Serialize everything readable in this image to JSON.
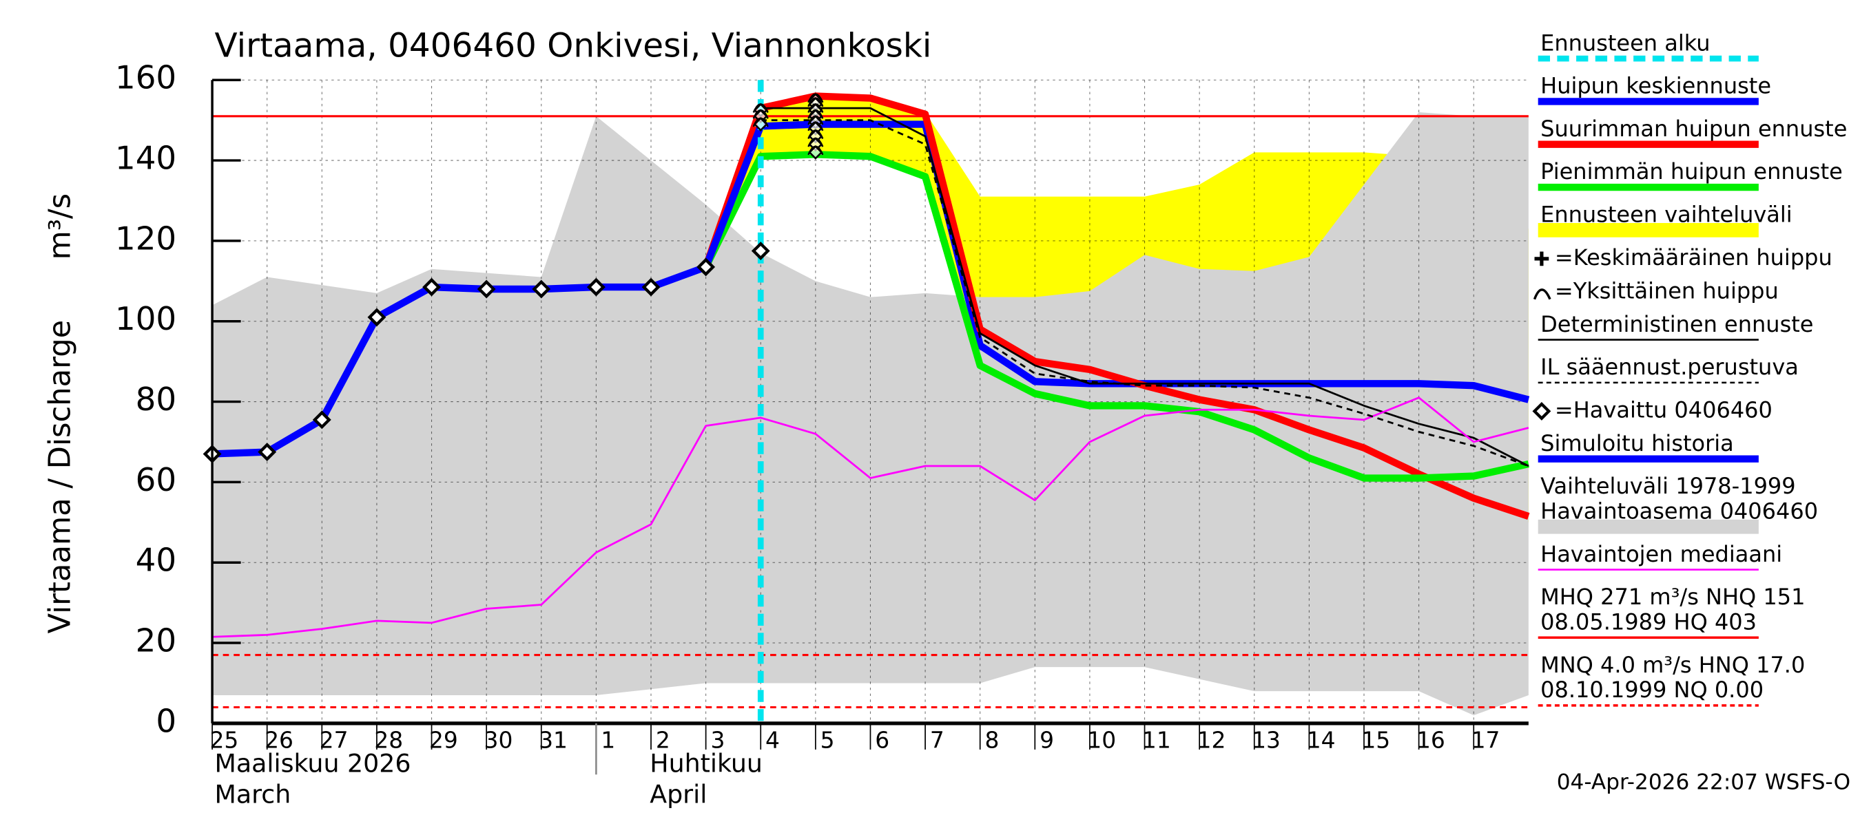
{
  "chart_data": {
    "type": "line",
    "title": "Virtaama, 0406460 Onkivesi, Viannonkoski",
    "ylabel": [
      "Virtaama / Discharge",
      "m³/s"
    ],
    "x": [
      0,
      1,
      2,
      3,
      4,
      5,
      6,
      7,
      8,
      9,
      10,
      11,
      12,
      13,
      14,
      15,
      16,
      17,
      18,
      19,
      20,
      21,
      22,
      23,
      24
    ],
    "xlim": [
      0,
      24
    ],
    "xticks": [
      {
        "value": 0,
        "label": "25"
      },
      {
        "value": 1,
        "label": "26"
      },
      {
        "value": 2,
        "label": "27"
      },
      {
        "value": 3,
        "label": "28"
      },
      {
        "value": 4,
        "label": "29"
      },
      {
        "value": 5,
        "label": "30"
      },
      {
        "value": 6,
        "label": "31"
      },
      {
        "value": 7,
        "label": "1"
      },
      {
        "value": 8,
        "label": "2"
      },
      {
        "value": 9,
        "label": "3"
      },
      {
        "value": 10,
        "label": "4"
      },
      {
        "value": 11,
        "label": "5"
      },
      {
        "value": 12,
        "label": "6"
      },
      {
        "value": 13,
        "label": "7"
      },
      {
        "value": 14,
        "label": "8"
      },
      {
        "value": 15,
        "label": "9"
      },
      {
        "value": 16,
        "label": "10"
      },
      {
        "value": 17,
        "label": "11"
      },
      {
        "value": 18,
        "label": "12"
      },
      {
        "value": 19,
        "label": "13"
      },
      {
        "value": 20,
        "label": "14"
      },
      {
        "value": 21,
        "label": "15"
      },
      {
        "value": 22,
        "label": "16"
      },
      {
        "value": 23,
        "label": "17"
      }
    ],
    "ylim": [
      0,
      160
    ],
    "yticks": [
      0,
      20,
      40,
      60,
      80,
      100,
      120,
      140,
      160
    ],
    "grid": true,
    "months": [
      {
        "x": 0,
        "lines": [
          "Maaliskuu 2026",
          "March"
        ]
      },
      {
        "x": 8,
        "lines": [
          "Huhtikuu",
          "April"
        ]
      }
    ],
    "month_start": 7,
    "series": [
      {
        "name": "Ennusteen alku",
        "color": "#00e5ee",
        "style": "vline",
        "x": 10
      },
      {
        "name": "Huipun keskiennuste",
        "color": "#0000ff",
        "style": "thick",
        "values": [
          null,
          null,
          null,
          null,
          null,
          null,
          null,
          null,
          null,
          113.5,
          148.5,
          149,
          149,
          149,
          94,
          85,
          84.5,
          84.5,
          84.5,
          84.5,
          84.5,
          84.5,
          84.5,
          84,
          80.5
        ]
      },
      {
        "name": "Suurimman huipun ennuste",
        "color": "#ff0000",
        "style": "thick",
        "values": [
          null,
          null,
          null,
          null,
          null,
          null,
          null,
          null,
          null,
          113.5,
          153,
          156,
          155.5,
          151.5,
          98,
          90,
          88,
          84,
          80.5,
          78,
          73,
          68.5,
          62,
          56,
          51.5
        ]
      },
      {
        "name": "Pienimmän huipun ennuste",
        "color": "#00ee00",
        "style": "thick",
        "values": [
          null,
          null,
          null,
          null,
          null,
          null,
          null,
          null,
          null,
          113.5,
          141,
          141.5,
          141,
          136,
          89,
          82,
          79,
          79,
          77.5,
          73,
          66,
          61,
          61,
          61.5,
          64.5
        ]
      },
      {
        "name": "Ennusteen vaihteluväli",
        "color": "#ffff00",
        "style": "band",
        "low": [
          null,
          null,
          null,
          null,
          null,
          null,
          null,
          null,
          null,
          113.5,
          141,
          141,
          141,
          136,
          88,
          80,
          79,
          75,
          74,
          70,
          66,
          61,
          55,
          52,
          50
        ],
        "high": [
          null,
          null,
          null,
          null,
          null,
          null,
          null,
          null,
          null,
          113.5,
          154,
          156,
          156,
          152,
          131,
          131,
          131,
          131,
          134,
          142,
          142,
          142,
          141,
          128,
          123
        ]
      },
      {
        "name": "=Keskimääräinen huippu",
        "color": "#000000",
        "style": "plus"
      },
      {
        "name": "=Yksittäinen huippu",
        "color": "#000000",
        "style": "peak",
        "px": [
          10,
          10,
          10,
          11,
          11,
          11,
          11,
          11,
          11,
          11,
          11,
          11
        ],
        "py": [
          152.5,
          151,
          149,
          155,
          154,
          152.5,
          151,
          149.5,
          148,
          146,
          144,
          142
        ]
      },
      {
        "name": "Deterministinen ennuste",
        "color": "#000000",
        "style": "line",
        "values": [
          null,
          null,
          null,
          null,
          null,
          null,
          null,
          null,
          null,
          null,
          153,
          153,
          153,
          146,
          97,
          89,
          84.5,
          84.5,
          84.5,
          84.5,
          84.5,
          79,
          74.5,
          71,
          64
        ]
      },
      {
        "name": "IL sääennust.perustuva",
        "color": "#000000",
        "style": "dashed",
        "values": [
          null,
          null,
          null,
          null,
          null,
          null,
          null,
          null,
          null,
          null,
          150,
          150,
          150,
          144,
          96,
          87,
          85,
          84,
          84,
          83.5,
          81,
          77,
          72.5,
          69,
          64
        ]
      },
      {
        "name": "=Havaittu 0406460",
        "color": "#000000",
        "style": "diamond",
        "values": [
          67,
          67.5,
          75.5,
          101,
          108.5,
          108,
          108,
          108.5,
          108.5,
          113.5,
          117.5,
          null,
          null,
          null,
          null,
          null,
          null,
          null,
          null,
          null,
          null,
          null,
          null,
          null,
          null
        ]
      },
      {
        "name": "Simuloitu historia",
        "color": "#0000ff",
        "style": "thick",
        "values": [
          67,
          67.5,
          75.5,
          101,
          108.5,
          108,
          108,
          108.5,
          108.5,
          113.5,
          148.5,
          null,
          null,
          null,
          null,
          null,
          null,
          null,
          null,
          null,
          null,
          null,
          null,
          null,
          null
        ]
      },
      {
        "name": [
          "Vaihteluväli 1978-1999",
          "Havaintoasema 0406460"
        ],
        "color": "#d3d3d3",
        "style": "band",
        "low": [
          7,
          7,
          7,
          7,
          7,
          7,
          7,
          7,
          8.5,
          10,
          10,
          10,
          10,
          10,
          10,
          14,
          14,
          14,
          11,
          8,
          8,
          8,
          8,
          2,
          7
        ],
        "high": [
          104,
          111,
          109,
          107,
          113,
          112,
          111,
          151,
          140,
          129,
          117,
          110,
          106,
          107,
          106,
          106,
          107.5,
          116.5,
          113,
          112.5,
          116,
          134,
          152,
          151,
          151
        ]
      },
      {
        "name": "Havaintojen mediaani",
        "color": "#ff00ff",
        "style": "line",
        "values": [
          21.5,
          22,
          23.5,
          25.5,
          25,
          28.5,
          29.5,
          42.5,
          49.5,
          74,
          76,
          72,
          61,
          64,
          64,
          55.5,
          70,
          76.5,
          78,
          78,
          76.5,
          75.5,
          81,
          70,
          73.5
        ]
      },
      {
        "name": [
          "MHQ  271 m³/s NHQ  151",
          "08.05.1989 HQ  403"
        ],
        "color": "#ff0000",
        "style": "hline",
        "levels": [
          151
        ]
      },
      {
        "name": [
          "MNQ  4.0 m³/s HNQ 17.0",
          "08.10.1999 NQ 0.00"
        ],
        "color": "#ff0000",
        "style": "hline-dashed",
        "levels": [
          17,
          4,
          0
        ]
      }
    ],
    "footer": "04-Apr-2026 22:07 WSFS-O"
  }
}
